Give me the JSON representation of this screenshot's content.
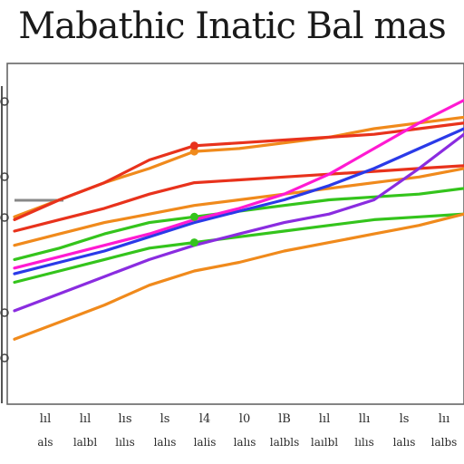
{
  "title": "Mabathic Inatic Bal mas",
  "chart_data": {
    "type": "line",
    "title": "Mabathic Inatic Bal mas",
    "xlabel": "",
    "ylabel": "",
    "x_tick_labels_row1": [
      "lıl",
      "lıl",
      "lıs",
      "ls",
      "l4",
      "l0",
      "lB",
      "lıl",
      "llı",
      "ls",
      "lıı"
    ],
    "x_tick_labels_row2": [
      "als",
      "lalbl",
      "lılıs",
      "lalıs",
      "lalis",
      "lalıs",
      "lalbls",
      "laılbl",
      "lılıs",
      "lalıs",
      "lalbs"
    ],
    "x": [
      0,
      5,
      10,
      15,
      20,
      25,
      30,
      35,
      40,
      45,
      50
    ],
    "xlim": [
      0,
      50
    ],
    "ylim": [
      0,
      100
    ],
    "grid": false,
    "legend": "none",
    "series": [
      {
        "color": "#f08a1c",
        "values": [
          55,
          61,
          67,
          72,
          78,
          79,
          81,
          83,
          86,
          88,
          90
        ]
      },
      {
        "color": "#e8321c",
        "values": [
          54,
          61,
          67,
          75,
          80,
          81,
          82,
          83,
          84,
          86,
          88
        ]
      },
      {
        "color": "#e8321c",
        "values": [
          50,
          54,
          58,
          63,
          67,
          68,
          69,
          70,
          71,
          72,
          73
        ]
      },
      {
        "color": "#f08a1c",
        "values": [
          45,
          49,
          53,
          56,
          59,
          61,
          63,
          65,
          67,
          69,
          72
        ]
      },
      {
        "color": "#34c41c",
        "values": [
          40,
          44,
          49,
          53,
          55,
          57,
          59,
          61,
          62,
          63,
          65
        ]
      },
      {
        "color": "#34c41c",
        "values": [
          32,
          36,
          40,
          44,
          46,
          48,
          50,
          52,
          54,
          55,
          56
        ]
      },
      {
        "color": "#8a2ce0",
        "values": [
          22,
          28,
          34,
          40,
          45,
          49,
          53,
          56,
          61,
          72,
          84
        ]
      },
      {
        "color": "#f08a1c",
        "values": [
          12,
          18,
          24,
          31,
          36,
          39,
          43,
          46,
          49,
          52,
          56
        ]
      },
      {
        "color": "#2a3ae8",
        "values": [
          35,
          39,
          43,
          48,
          53,
          57,
          61,
          66,
          72,
          79,
          86
        ]
      },
      {
        "color": "#ff1ad2",
        "values": [
          37,
          41,
          45,
          49,
          54,
          58,
          63,
          70,
          79,
          88,
          96
        ]
      }
    ]
  }
}
